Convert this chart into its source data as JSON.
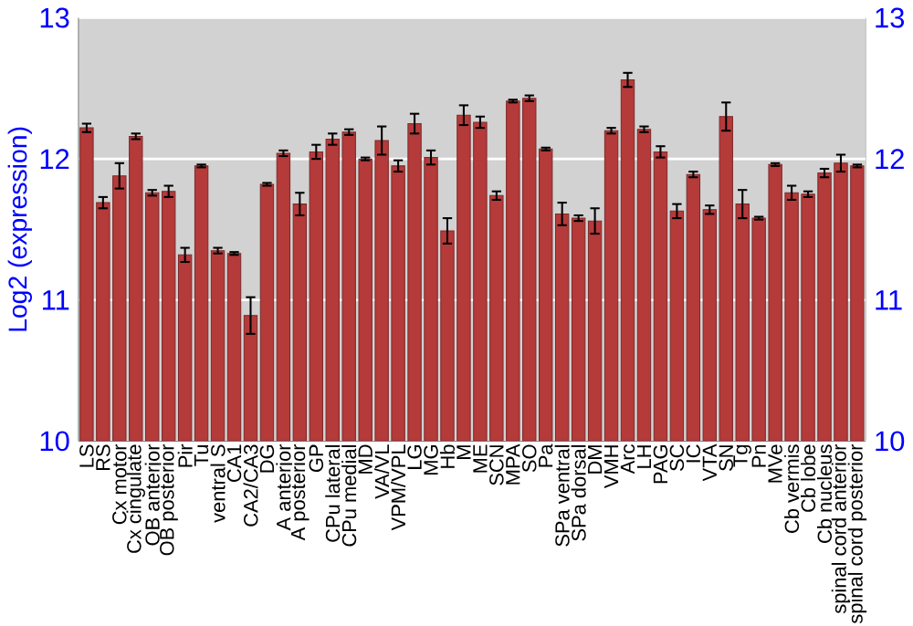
{
  "chart_data": {
    "type": "bar",
    "ylabel": "Log2 (expression)",
    "categories": [
      "LS",
      "RS",
      "Cx motor",
      "Cx cingulate",
      "OB anterior",
      "OB posterior",
      "Pir",
      "Tu",
      "ventral S",
      "CA1",
      "CA2/CA3",
      "DG",
      "A anterior",
      "A posterior",
      "GP",
      "CPu lateral",
      "CPu medial",
      "MD",
      "VA/VL",
      "VPM/VPL",
      "LG",
      "MG",
      "Hb",
      "M",
      "ME",
      "SCN",
      "MPA",
      "SO",
      "Pa",
      "SPa ventral",
      "SPa dorsal",
      "DM",
      "VMH",
      "Arc",
      "LH",
      "PAG",
      "SC",
      "IC",
      "VTA",
      "SN",
      "Tg",
      "Pn",
      "MVe",
      "Cb vermis",
      "Cb lobe",
      "Cb nucleus",
      "spinal cord anterior",
      "spinal cord posterior"
    ],
    "values": [
      12.22,
      11.69,
      11.88,
      12.16,
      11.76,
      11.77,
      11.32,
      11.95,
      11.35,
      11.33,
      10.89,
      11.82,
      12.04,
      11.68,
      12.05,
      12.14,
      12.19,
      12.0,
      12.13,
      11.95,
      12.25,
      12.01,
      11.49,
      12.31,
      12.26,
      11.74,
      12.41,
      12.43,
      12.07,
      11.61,
      11.58,
      11.56,
      12.2,
      12.56,
      12.21,
      12.05,
      11.63,
      11.89,
      11.64,
      12.3,
      11.68,
      11.58,
      11.96,
      11.76,
      11.75,
      11.9,
      11.97,
      11.95
    ],
    "errors": [
      0.03,
      0.04,
      0.09,
      0.02,
      0.02,
      0.04,
      0.05,
      0.01,
      0.02,
      0.01,
      0.13,
      0.01,
      0.02,
      0.08,
      0.05,
      0.04,
      0.02,
      0.01,
      0.1,
      0.04,
      0.07,
      0.05,
      0.09,
      0.07,
      0.04,
      0.03,
      0.01,
      0.02,
      0.01,
      0.08,
      0.02,
      0.09,
      0.02,
      0.05,
      0.02,
      0.04,
      0.05,
      0.02,
      0.03,
      0.1,
      0.1,
      0.01,
      0.01,
      0.05,
      0.02,
      0.03,
      0.06,
      0.01
    ],
    "color": "#b53a3a",
    "ylim": [
      10,
      13
    ],
    "yticks": [
      10,
      11,
      12,
      13
    ],
    "y2lim": [
      10,
      13
    ],
    "y2ticks": [
      10,
      11,
      12,
      13
    ],
    "grid": "y"
  }
}
